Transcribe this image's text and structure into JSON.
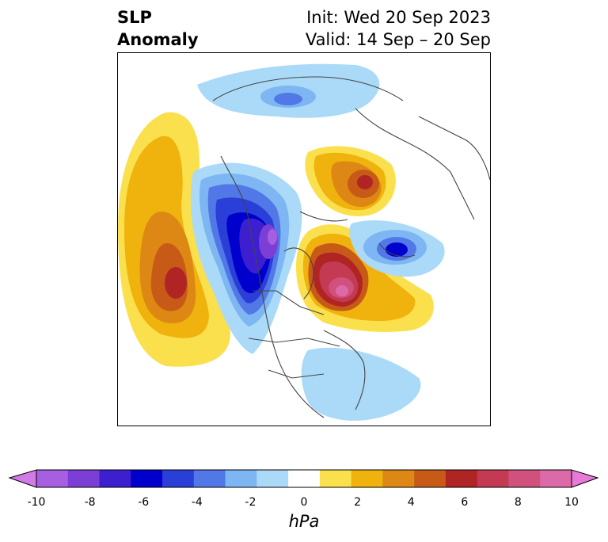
{
  "header": {
    "variable_line1": "SLP",
    "variable_line2": "Anomaly",
    "init_text": "Init: Wed 20 Sep 2023",
    "valid_text": "Valid: 14 Sep – 20 Sep"
  },
  "colorbar": {
    "units": "hPa",
    "tick_labels": [
      "-10",
      "-8",
      "-6",
      "-4",
      "-2",
      "0",
      "2",
      "4",
      "6",
      "8",
      "10"
    ],
    "bin_colors": [
      "#a65fe0",
      "#7b3fd6",
      "#3d1fd0",
      "#0000cc",
      "#2a3ed8",
      "#5178e6",
      "#7db6f2",
      "#aadaf8",
      "#ffffff",
      "#fbe04d",
      "#f0b20c",
      "#dd8814",
      "#c85a18",
      "#b02424",
      "#c33a52",
      "#d0507e",
      "#dd6aa8"
    ],
    "min_extend_color": "#d27ae6",
    "max_extend_color": "#e77ad8"
  },
  "map": {
    "features": [
      {
        "name": "pacific-positive-anomaly",
        "peak_hpa": 7
      },
      {
        "name": "western-canada-negative-anomaly",
        "peak_hpa": -9
      },
      {
        "name": "greenland-positive-anomaly",
        "peak_hpa": 9
      },
      {
        "name": "siberia-positive-anomaly",
        "peak_hpa": 6
      },
      {
        "name": "north-atlantic-negative-anomaly",
        "peak_hpa": -6
      }
    ]
  }
}
